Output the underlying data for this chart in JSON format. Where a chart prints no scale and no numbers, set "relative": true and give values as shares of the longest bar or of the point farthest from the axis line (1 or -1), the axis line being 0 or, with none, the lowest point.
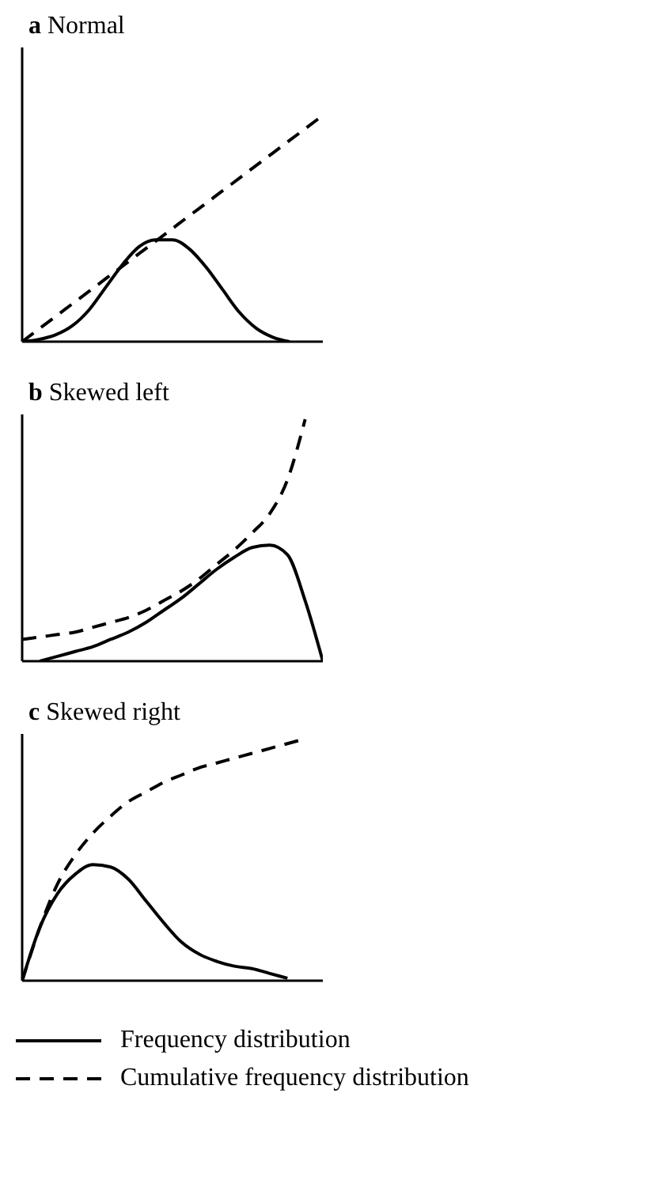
{
  "chart_data": [
    {
      "type": "line",
      "title": "a Normal",
      "relative": true,
      "grid": false,
      "marker": "none",
      "legend": false,
      "categories": [
        null,
        null,
        null,
        null,
        null,
        null,
        null,
        null,
        null,
        null,
        null,
        null,
        null,
        null,
        null,
        null,
        null,
        null,
        null
      ],
      "series": [
        {
          "color": "#000000",
          "line_style": "solid",
          "values": [
            0,
            0.01,
            0.03,
            0.07,
            0.14,
            0.24,
            0.34,
            0.42,
            0.45,
            0.45,
            0.41,
            0.33,
            0.23,
            0.13,
            0.06,
            0.02,
            0,
            null,
            null
          ]
        },
        {
          "color": "#000000",
          "line_style": "dashed",
          "values": [
            0,
            0.056,
            0.111,
            0.167,
            0.222,
            0.278,
            0.333,
            0.389,
            0.444,
            0.5,
            0.556,
            0.611,
            0.667,
            0.722,
            0.778,
            0.833,
            0.889,
            0.944,
            1
          ]
        }
      ]
    },
    {
      "type": "line",
      "title": "b Skewed left",
      "relative": true,
      "grid": false,
      "marker": "none",
      "legend": false,
      "categories": [
        null,
        null,
        null,
        null,
        null,
        null,
        null,
        null,
        null,
        null,
        null,
        null,
        null,
        null,
        null,
        null,
        null,
        null
      ],
      "series": [
        {
          "color": "#000000",
          "line_style": "solid",
          "values": [
            null,
            0,
            0.02,
            0.04,
            0.06,
            0.09,
            0.12,
            0.16,
            0.21,
            0.26,
            0.32,
            0.38,
            0.43,
            0.47,
            0.48,
            0.44,
            0.25,
            0
          ]
        },
        {
          "color": "#000000",
          "line_style": "dashed",
          "values": [
            0.09,
            0.1,
            0.11,
            0.12,
            0.14,
            0.16,
            0.18,
            0.21,
            0.25,
            0.29,
            0.34,
            0.4,
            0.46,
            0.53,
            0.61,
            0.75,
            1,
            null
          ]
        }
      ]
    },
    {
      "type": "line",
      "title": "c Skewed right",
      "relative": true,
      "grid": false,
      "marker": "none",
      "legend": "bottom",
      "categories": [
        null,
        null,
        null,
        null,
        null,
        null,
        null,
        null,
        null,
        null,
        null,
        null,
        null,
        null,
        null,
        null,
        null,
        null
      ],
      "series": [
        {
          "name": "Frequency distribution",
          "color": "#000000",
          "line_style": "solid",
          "values": [
            0,
            0.22,
            0.36,
            0.44,
            0.48,
            0.47,
            0.42,
            0.33,
            0.24,
            0.16,
            0.11,
            0.08,
            0.06,
            0.05,
            0.03,
            0.01,
            null,
            null
          ]
        },
        {
          "name": "Cumulative frequency distribution",
          "color": "#000000",
          "line_style": "dashed",
          "values": [
            0,
            0.22,
            0.4,
            0.52,
            0.61,
            0.68,
            0.74,
            0.78,
            0.82,
            0.85,
            0.88,
            0.9,
            0.92,
            0.94,
            0.96,
            0.98,
            1,
            null
          ]
        }
      ]
    }
  ]
}
